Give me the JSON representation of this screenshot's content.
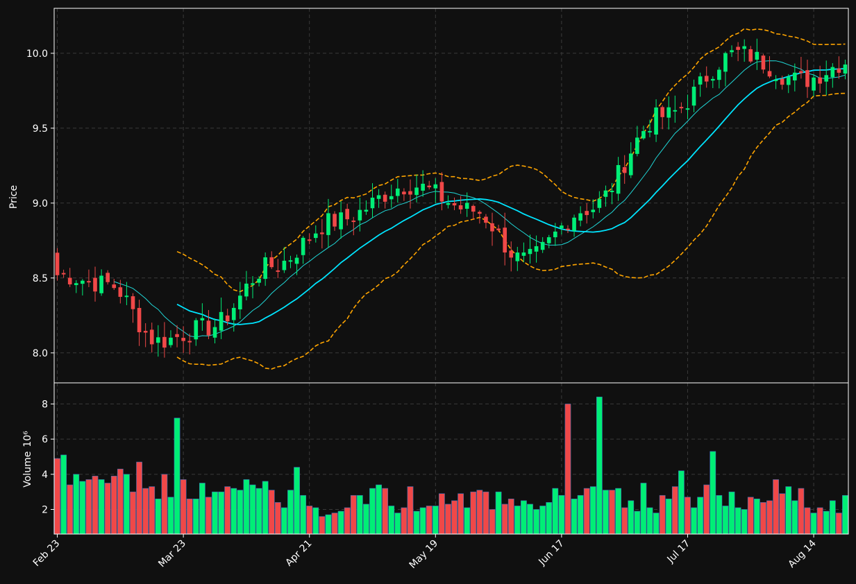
{
  "chart_data": [
    {
      "type": "candlestick",
      "panel": "price",
      "ylabel": "Price",
      "ylim": [
        7.8,
        10.3
      ],
      "y_ticks": [
        8.0,
        8.5,
        9.0,
        9.5,
        10.0
      ],
      "y_tick_labels": [
        "8.0",
        "8.5",
        "9.0",
        "9.5",
        "10.0"
      ],
      "x_tick_labels": [
        "Feb 23",
        "Mar 23",
        "Apr 21",
        "May 19",
        "Jun 17",
        "Jul 17",
        "Aug 14"
      ],
      "grid": true,
      "colors": {
        "up": "#00ee76",
        "down": "#f04848",
        "ma_fast": "#20d8d8",
        "ma_slow": "#00e5ff",
        "band": "#ffa500"
      },
      "anchors": [
        [
          0,
          8.52,
          0.06,
          0.4
        ],
        [
          8,
          8.46,
          0.07,
          0.35
        ],
        [
          16,
          8.08,
          0.06,
          0.3
        ],
        [
          24,
          8.17,
          0.05,
          0.25
        ],
        [
          34,
          8.58,
          0.07,
          0.35
        ],
        [
          44,
          8.88,
          0.06,
          0.3
        ],
        [
          56,
          9.12,
          0.07,
          0.35
        ],
        [
          66,
          8.95,
          0.07,
          0.35
        ],
        [
          74,
          8.62,
          0.06,
          0.3
        ],
        [
          84,
          8.96,
          0.06,
          0.3
        ],
        [
          96,
          9.58,
          0.07,
          0.35
        ],
        [
          108,
          10.0,
          0.06,
          0.3
        ],
        [
          118,
          9.82,
          0.07,
          0.35
        ],
        [
          126,
          9.95,
          0.07,
          0.35
        ]
      ]
    },
    {
      "type": "bar",
      "panel": "volume",
      "ylabel": "Volume",
      "y_unit": "10⁶",
      "ylim": [
        0.6,
        9.2
      ],
      "y_ticks": [
        2,
        4,
        6,
        8
      ],
      "y_tick_labels": [
        "2",
        "4",
        "6",
        "8"
      ],
      "values": [
        4.9,
        5.1,
        3.4,
        4.0,
        3.6,
        3.7,
        3.9,
        3.7,
        3.5,
        3.9,
        4.3,
        4.0,
        3.0,
        4.7,
        3.2,
        3.3,
        2.6,
        4.0,
        2.7,
        7.2,
        3.7,
        2.6,
        2.6,
        3.5,
        2.7,
        3.0,
        3.0,
        3.3,
        3.2,
        3.1,
        3.7,
        3.4,
        3.2,
        3.6,
        3.1,
        2.4,
        2.1,
        3.1,
        4.4,
        2.8,
        2.2,
        2.1,
        1.6,
        1.7,
        1.8,
        1.9,
        2.1,
        2.8,
        2.8,
        2.3,
        3.2,
        3.4,
        3.2,
        2.2,
        1.8,
        2.1,
        3.3,
        1.9,
        2.1,
        2.2,
        2.2,
        2.9,
        2.3,
        2.5,
        2.9,
        2.1,
        3.0,
        3.1,
        3.0,
        2.0,
        3.0,
        2.3,
        2.6,
        2.2,
        2.5,
        2.3,
        2.0,
        2.2,
        2.4,
        3.2,
        2.8,
        8.0,
        2.6,
        2.8,
        3.2,
        3.3,
        8.4,
        3.1,
        3.1,
        3.2,
        2.1,
        2.5,
        1.9,
        3.5,
        2.1,
        1.8,
        2.8,
        2.6,
        3.3,
        4.2,
        2.7,
        2.1,
        2.7,
        3.4,
        5.3,
        2.8,
        2.2,
        3.0,
        2.1,
        2.0,
        2.7,
        2.6,
        2.4,
        2.5,
        3.7,
        2.9,
        3.3,
        2.5,
        3.2,
        2.1,
        1.8,
        2.1,
        1.9,
        2.5,
        1.8,
        2.8
      ],
      "colors": {
        "up": "#00ee76",
        "down": "#f04848",
        "edge": "#3b6fb5"
      }
    }
  ]
}
